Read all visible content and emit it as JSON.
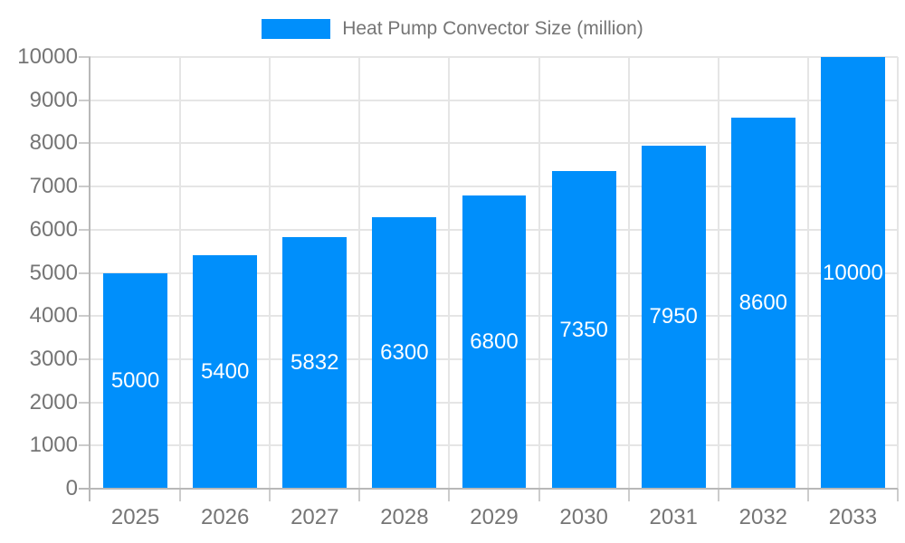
{
  "chart_data": {
    "type": "bar",
    "title": "Heat Pump Convector Size (million)",
    "categories": [
      "2025",
      "2026",
      "2027",
      "2028",
      "2029",
      "2030",
      "2031",
      "2032",
      "2033"
    ],
    "series": [
      {
        "name": "Heat Pump Convector Size (million)",
        "values": [
          5000,
          5400,
          5832,
          6300,
          6800,
          7350,
          7950,
          8600,
          10000
        ]
      }
    ],
    "data_labels": [
      "5000",
      "5400",
      "5832",
      "6300",
      "6800",
      "7350",
      "7950",
      "8600",
      "10000"
    ],
    "xlabel": "",
    "ylabel": "",
    "ylim": [
      0,
      10000
    ],
    "ytick_step": 1000,
    "yticks": [
      0,
      1000,
      2000,
      3000,
      4000,
      5000,
      6000,
      7000,
      8000,
      9000,
      10000
    ],
    "grid": true,
    "legend_position": "top-center",
    "colors": {
      "bar": "#008FFB",
      "bar_value_label": "#ffffff",
      "axis_text": "#757575",
      "legend_text": "#757575",
      "gridline": "#e5e5e5",
      "axis_line": "#b8b8b8",
      "tick_mark": "#cccccc"
    }
  }
}
